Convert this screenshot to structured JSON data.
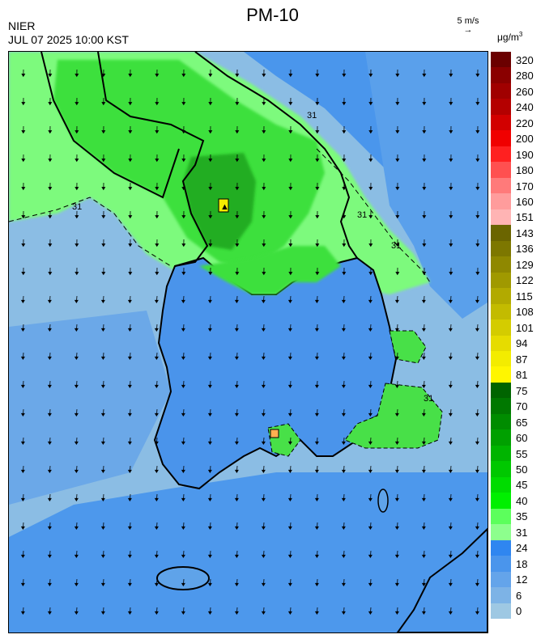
{
  "header": {
    "title": "PM-10",
    "agency": "NIER",
    "datetime": "JUL 07 2025 10:00 KST",
    "wind_reference": "5 m/s",
    "unit": "μg/m",
    "unit_exponent": "3"
  },
  "map": {
    "region": "Korean Peninsula (South Korea)",
    "contour_labels": [
      "31",
      "31",
      "31",
      "31",
      "31"
    ],
    "markers": [
      "max-marker",
      "max-marker"
    ]
  },
  "legend": {
    "labels": [
      "320",
      "280",
      "260",
      "240",
      "220",
      "200",
      "190",
      "180",
      "170",
      "160",
      "151",
      "143",
      "136",
      "129",
      "122",
      "115",
      "108",
      "101",
      "94",
      "87",
      "81",
      "75",
      "70",
      "65",
      "60",
      "55",
      "50",
      "45",
      "40",
      "35",
      "31",
      "24",
      "18",
      "12",
      "6",
      "0"
    ],
    "colors": [
      "#6b0000",
      "#8a0000",
      "#a00000",
      "#b40000",
      "#d20000",
      "#f00000",
      "#ff2020",
      "#ff5050",
      "#ff7a7a",
      "#ff9c9c",
      "#ffb4b4",
      "#6b6500",
      "#7d7700",
      "#8f8800",
      "#a09900",
      "#b2aa00",
      "#c3bb00",
      "#d4cc00",
      "#e6dc00",
      "#f3ec00",
      "#fff600",
      "#006400",
      "#007800",
      "#008c00",
      "#00a000",
      "#00b400",
      "#00c800",
      "#00dc00",
      "#00f000",
      "#5cff5c",
      "#8dff8d",
      "#2f86f0",
      "#4a95ec",
      "#64a4ea",
      "#7db3e6",
      "#9ec8e3"
    ]
  },
  "colors": {
    "sea": "#8bbde4",
    "sea_deep": "#3d8ef0",
    "land_low": "#4f97ea",
    "green_light": "#7dfa7d",
    "green_mid": "#37e337",
    "green_dark": "#1fa91f",
    "border": "#000000"
  }
}
